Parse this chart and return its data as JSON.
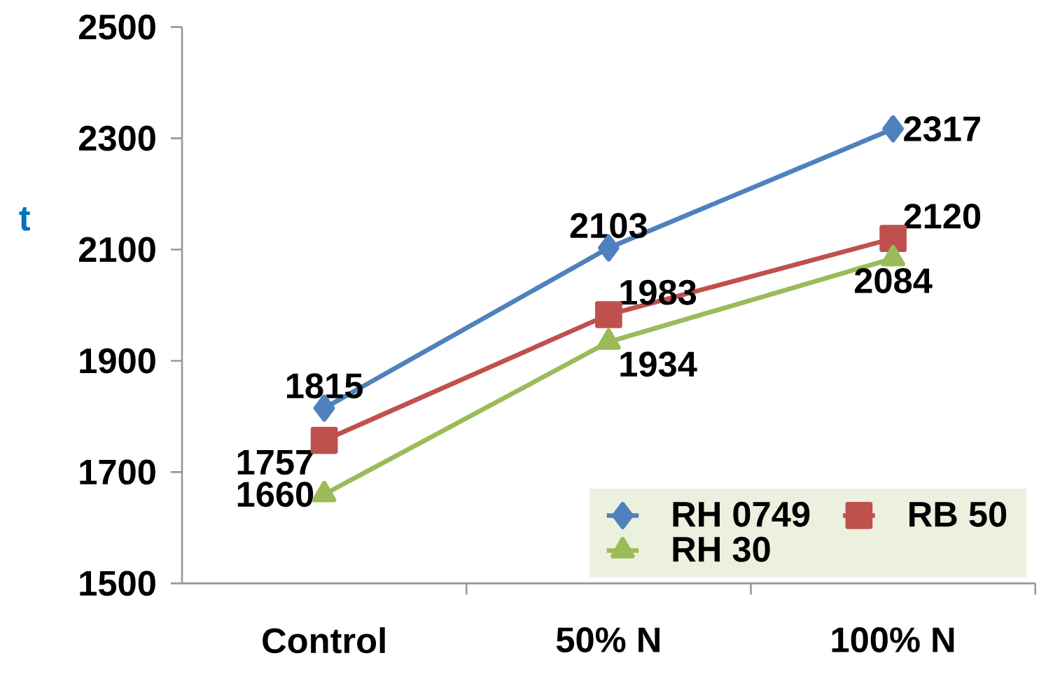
{
  "chart_data": {
    "type": "line",
    "ylabel": "t",
    "categories": [
      "Control",
      "50% N",
      "100% N"
    ],
    "series": [
      {
        "name": "RH 0749",
        "color": "#4f81bd",
        "marker": "diamond",
        "values": [
          1815,
          2103,
          2317
        ]
      },
      {
        "name": "RB 50",
        "color": "#c0504d",
        "marker": "square",
        "values": [
          1757,
          1983,
          2120
        ]
      },
      {
        "name": "RH 30",
        "color": "#9bbb59",
        "marker": "triangle",
        "values": [
          1660,
          1934,
          2084
        ]
      }
    ],
    "ylim": [
      1500,
      2500
    ],
    "yticks": [
      1500,
      1700,
      1900,
      2100,
      2300,
      2500
    ],
    "grid": false,
    "legend": "bottom right",
    "data_labels": true
  }
}
